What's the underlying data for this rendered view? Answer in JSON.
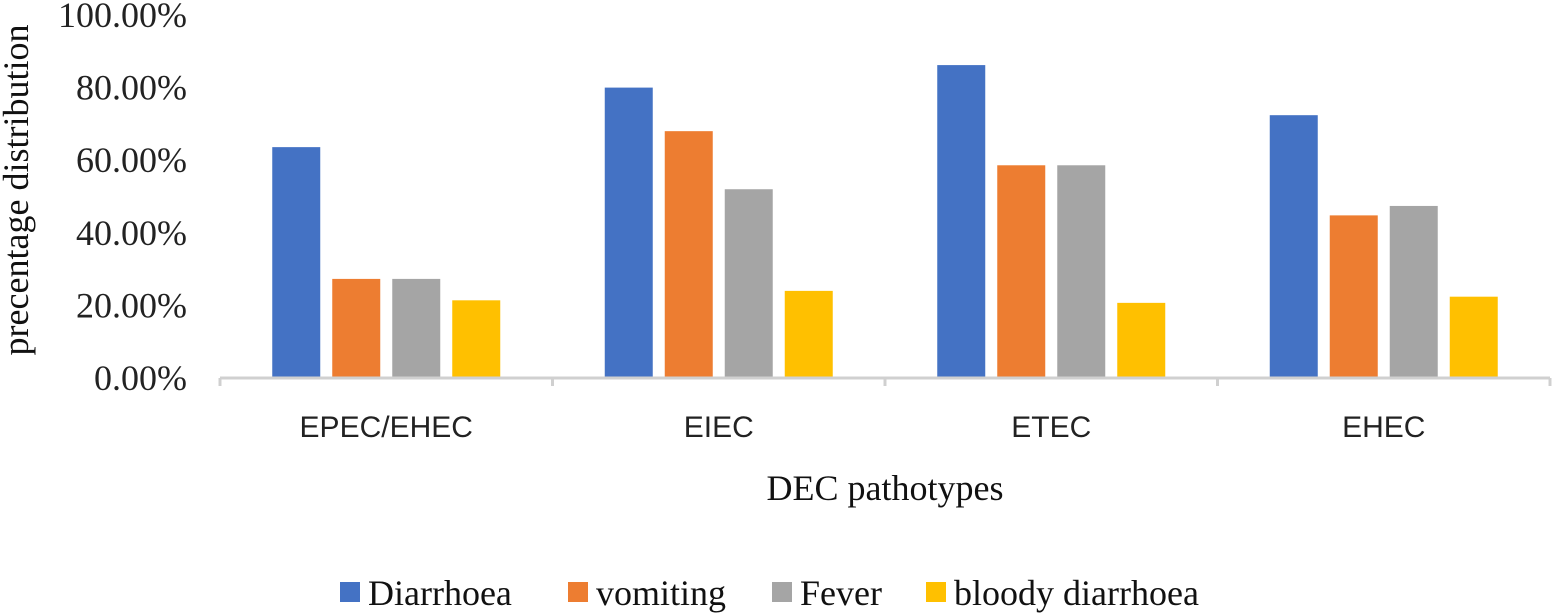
{
  "chart_data": {
    "type": "bar",
    "title": "",
    "xlabel": "DEC pathotypes",
    "ylabel": "precentage distribution",
    "categories": [
      "EPEC/EHEC",
      "EIEC",
      "ETEC",
      "EHEC"
    ],
    "series": [
      {
        "name": "Diarrhoea",
        "color": "#4472C4",
        "values": [
          63.6,
          80.0,
          86.2,
          72.4
        ]
      },
      {
        "name": "vomiting",
        "color": "#ED7D31",
        "values": [
          27.3,
          68.0,
          58.6,
          44.8
        ]
      },
      {
        "name": "Fever",
        "color": "#A5A5A5",
        "values": [
          27.3,
          52.0,
          58.6,
          47.4
        ]
      },
      {
        "name": "bloody diarrhoea",
        "color": "#FFC000",
        "values": [
          21.4,
          24.0,
          20.7,
          22.4
        ]
      }
    ],
    "ylim": [
      0,
      100
    ],
    "yticks": [
      "0.00%",
      "20.00%",
      "40.00%",
      "60.00%",
      "80.00%",
      "100.00%"
    ],
    "grid": false,
    "legend_position": "bottom"
  }
}
